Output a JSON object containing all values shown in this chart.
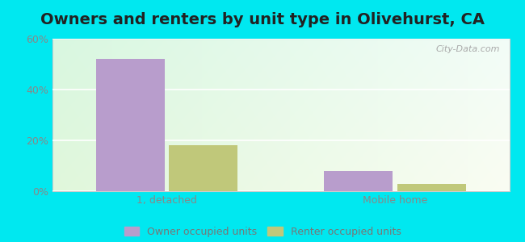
{
  "title": "Owners and renters by unit type in Olivehurst, CA",
  "categories": [
    "1, detached",
    "Mobile home"
  ],
  "owner_values": [
    52,
    8
  ],
  "renter_values": [
    18,
    3
  ],
  "owner_color": "#b89dcc",
  "renter_color": "#c0c87a",
  "ylim": [
    0,
    60
  ],
  "yticks": [
    0,
    20,
    40,
    60
  ],
  "ytick_labels": [
    "0%",
    "20%",
    "40%",
    "60%"
  ],
  "background_color": "#00e8f0",
  "title_fontsize": 14,
  "legend_labels": [
    "Owner occupied units",
    "Renter occupied units"
  ],
  "bar_width": 0.6,
  "group_positions": [
    1.0,
    3.0
  ],
  "xlim": [
    0.0,
    4.0
  ],
  "watermark": "City-Data.com"
}
